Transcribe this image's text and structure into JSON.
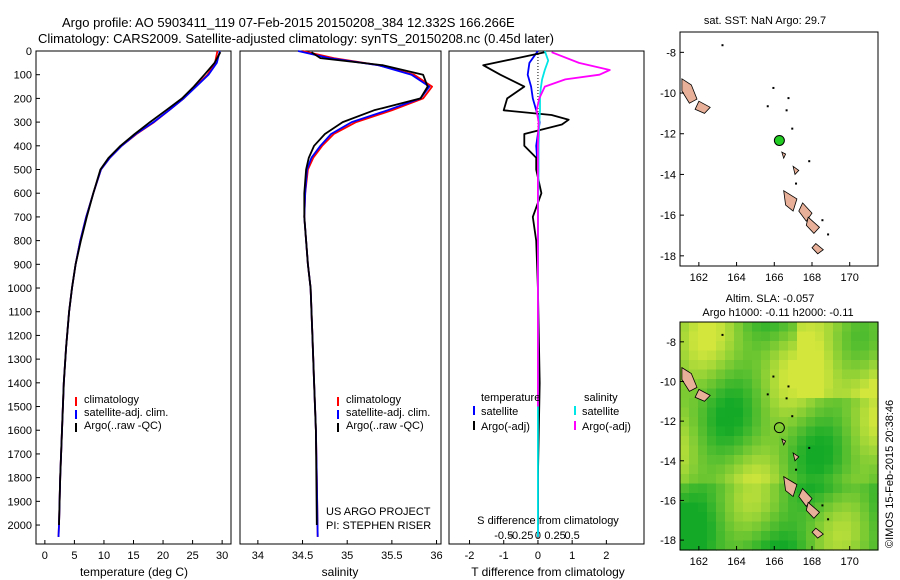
{
  "title_line1": "Argo profile: AO 5903411_119 07-Feb-2015 20150208_384 12.332S 166.266E",
  "title_line2": "Climatology: CARS2009. Satellite-adjusted climatology: synTS_20150208.nc (0.45d later)",
  "timestamp": "©IMOS 15-Feb-2015 20:38:46",
  "colors": {
    "climatology": "#ff0000",
    "satellite": "#0000ff",
    "argo": "#000000",
    "salinity_satellite": "#00e5e5",
    "salinity_argo": "#ff00ff",
    "land": "#e8b098",
    "float_marker": "#22cc22"
  },
  "chart_data": [
    {
      "type": "line",
      "id": "temperature",
      "xlabel": "temperature (deg C)",
      "ylabel": "",
      "xlim": [
        -1.5,
        31.5
      ],
      "ylim": [
        2080,
        0
      ],
      "xticks": [
        0,
        5,
        10,
        15,
        20,
        25,
        30
      ],
      "yticks": [
        0,
        100,
        200,
        300,
        400,
        500,
        600,
        700,
        800,
        900,
        1000,
        1100,
        1200,
        1300,
        1400,
        1500,
        1600,
        1700,
        1800,
        1900,
        2000
      ],
      "legend": [
        "climatology",
        "satellite-adj. clim.",
        "Argo(..raw -QC)"
      ],
      "series": [
        {
          "name": "climatology",
          "color_key": "climatology",
          "x": [
            29.2,
            28.8,
            27.5,
            25.5,
            23.5,
            21,
            18.5,
            15.5,
            13,
            11,
            9.5,
            8.2,
            7,
            6,
            5.2,
            4.6,
            4.1,
            3.6,
            3.2,
            2.9,
            2.6,
            2.4,
            2.3
          ],
          "y": [
            0,
            50,
            100,
            150,
            200,
            250,
            300,
            350,
            400,
            450,
            500,
            600,
            700,
            800,
            900,
            1000,
            1100,
            1250,
            1400,
            1600,
            1800,
            2000,
            2050
          ]
        },
        {
          "name": "satellite-adj. clim.",
          "color_key": "satellite",
          "x": [
            29.6,
            29.1,
            27.7,
            25.6,
            23.5,
            21,
            18.4,
            15.4,
            13,
            11,
            9.5,
            8.2,
            7,
            6,
            5.2,
            4.6,
            4.1,
            3.6,
            3.2,
            2.9,
            2.6,
            2.4,
            2.3
          ],
          "y": [
            0,
            50,
            100,
            150,
            200,
            250,
            300,
            350,
            400,
            450,
            500,
            600,
            700,
            800,
            900,
            1000,
            1100,
            1250,
            1400,
            1600,
            1800,
            2000,
            2050
          ]
        },
        {
          "name": "Argo(..raw -QC)",
          "color_key": "argo",
          "x": [
            29.7,
            28.7,
            27,
            25.2,
            23.2,
            20.5,
            17.8,
            15.2,
            12.8,
            10.8,
            9.4,
            8.2,
            7.1,
            6.1,
            5.2,
            4.6,
            4.1,
            3.6,
            3.2,
            2.9,
            2.6,
            2.4
          ],
          "y": [
            5,
            50,
            100,
            150,
            200,
            250,
            300,
            350,
            400,
            450,
            500,
            600,
            700,
            800,
            900,
            1000,
            1100,
            1250,
            1400,
            1600,
            1800,
            2000
          ]
        }
      ]
    },
    {
      "type": "line",
      "id": "salinity",
      "xlabel": "salinity",
      "xlim": [
        33.8,
        36.05
      ],
      "ylim": [
        2080,
        0
      ],
      "xticks": [
        34,
        34.5,
        35,
        35.5,
        36
      ],
      "legend": [
        "climatology",
        "satellite-adj. clim.",
        "Argo(..raw -QC)"
      ],
      "annotation": [
        "US ARGO PROJECT",
        "PI: STEPHEN RISER"
      ],
      "series": [
        {
          "name": "climatology",
          "color_key": "climatology",
          "x": [
            34.5,
            34.85,
            35.35,
            35.75,
            35.95,
            35.85,
            35.5,
            35.1,
            34.85,
            34.72,
            34.62,
            34.56,
            34.53,
            34.52,
            34.54,
            34.56,
            34.59,
            34.61,
            34.63,
            34.65,
            34.66,
            34.67
          ],
          "y": [
            0,
            30,
            60,
            100,
            150,
            200,
            250,
            300,
            350,
            400,
            450,
            500,
            600,
            700,
            800,
            900,
            1000,
            1200,
            1400,
            1600,
            1800,
            2050
          ]
        },
        {
          "name": "satellite-adj. clim.",
          "color_key": "satellite",
          "x": [
            34.45,
            34.8,
            35.35,
            35.72,
            35.92,
            35.82,
            35.45,
            35.05,
            34.82,
            34.7,
            34.6,
            34.55,
            34.53,
            34.52,
            34.54,
            34.56,
            34.59,
            34.61,
            34.63,
            34.65,
            34.66,
            34.67
          ],
          "y": [
            0,
            30,
            60,
            100,
            150,
            200,
            250,
            300,
            350,
            400,
            450,
            500,
            600,
            700,
            800,
            900,
            1000,
            1200,
            1400,
            1600,
            1800,
            2050
          ]
        },
        {
          "name": "Argo(..raw -QC)",
          "color_key": "argo",
          "x": [
            34.6,
            34.7,
            35.4,
            35.85,
            35.9,
            35.82,
            35.3,
            34.95,
            34.75,
            34.63,
            34.57,
            34.54,
            34.52,
            34.52,
            34.54,
            34.56,
            34.59,
            34.61,
            34.63,
            34.65,
            34.66
          ],
          "y": [
            5,
            30,
            60,
            100,
            150,
            200,
            250,
            300,
            350,
            400,
            450,
            500,
            600,
            700,
            800,
            900,
            1000,
            1200,
            1400,
            1600,
            2000
          ]
        }
      ]
    },
    {
      "type": "line",
      "id": "difference",
      "xlabel": "T difference from climatology",
      "xlabel_top": "S difference from climatology",
      "xlim": [
        -2.6,
        3.1
      ],
      "ylim": [
        2080,
        0
      ],
      "xticks_T": [
        -2,
        -1,
        0,
        1,
        2
      ],
      "xticks_S": [
        -0.5,
        -0.25,
        0,
        0.25,
        0.5
      ],
      "s_axis_scale": 2,
      "legend_titles": [
        "temperature",
        "salinity"
      ],
      "legend": [
        "satellite",
        "Argo(-adj)",
        "satellite",
        "Argo(-adj)"
      ],
      "series": [
        {
          "name": "temperature satellite",
          "color_key": "satellite",
          "axis": "T",
          "x": [
            0,
            -0.1,
            -0.25,
            -0.3,
            -0.2,
            -0.15,
            -0.05,
            0.05,
            0,
            -0.05,
            0,
            0,
            0,
            0,
            0,
            0,
            0
          ],
          "y": [
            0,
            20,
            50,
            100,
            150,
            200,
            250,
            300,
            350,
            400,
            500,
            600,
            800,
            1000,
            1400,
            1800,
            2050
          ]
        },
        {
          "name": "temperature Argo(-adj)",
          "color_key": "argo",
          "axis": "T",
          "x": [
            0.2,
            -0.6,
            -1.6,
            -1.1,
            -0.4,
            -0.9,
            -1.0,
            0.4,
            0.9,
            0.7,
            -0.4,
            -0.4,
            -0.05,
            -0.05,
            0.1,
            -0.15,
            -0.05,
            0,
            0.05,
            0,
            0
          ],
          "y": [
            5,
            30,
            60,
            100,
            150,
            200,
            250,
            270,
            290,
            310,
            350,
            400,
            450,
            500,
            600,
            700,
            800,
            1000,
            1400,
            1800,
            2000
          ]
        },
        {
          "name": "salinity satellite",
          "color_key": "salinity_satellite",
          "axis": "S",
          "x": [
            0.1,
            0.15,
            0.1,
            0.06,
            0.04,
            0.03,
            0.03,
            0.02,
            0.01,
            0.01,
            0,
            0,
            0,
            0
          ],
          "y": [
            0,
            40,
            80,
            120,
            160,
            200,
            250,
            300,
            400,
            500,
            700,
            1000,
            1500,
            2050
          ]
        },
        {
          "name": "salinity Argo(-adj)",
          "color_key": "salinity_argo",
          "axis": "S",
          "x": [
            0.2,
            0.6,
            1.05,
            0.9,
            0.4,
            0.1,
            0.02,
            -0.02,
            0.01,
            0.0,
            0.0,
            0.0,
            0.0
          ],
          "y": [
            5,
            50,
            80,
            100,
            120,
            150,
            200,
            250,
            300,
            400,
            600,
            1000,
            1500
          ]
        }
      ]
    },
    {
      "type": "map",
      "id": "sst_map",
      "title": "sat. SST: NaN Argo: 29.7",
      "xlim": [
        161,
        171.5
      ],
      "ylim": [
        -18.5,
        -7
      ],
      "xticks": [
        162,
        164,
        166,
        168,
        170
      ],
      "yticks": [
        -8,
        -10,
        -12,
        -14,
        -16,
        -18
      ],
      "float_position": [
        166.27,
        -12.33
      ]
    },
    {
      "type": "heatmap",
      "id": "sla_map",
      "title_line1": "Altim. SLA: -0.057",
      "title_line2": "Argo h1000: -0.11 h2000: -0.11",
      "xlim": [
        161,
        171.5
      ],
      "ylim": [
        -18.5,
        -7
      ],
      "xticks": [
        162,
        164,
        166,
        168,
        170
      ],
      "yticks": [
        -8,
        -10,
        -12,
        -14,
        -16,
        -18
      ],
      "float_position": [
        166.27,
        -12.33
      ]
    }
  ]
}
